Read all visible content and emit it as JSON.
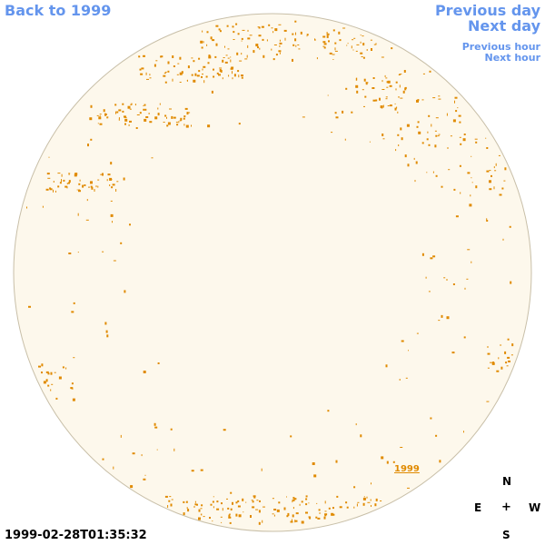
{
  "nav": {
    "back": "Back to 1999",
    "previous_day": "Previous day",
    "next_day": "Next day",
    "previous_hour": "Previous hour",
    "next_hour": "Next hour"
  },
  "compass": {
    "north": "N",
    "south": "S",
    "east": "E",
    "west": "W",
    "center": "+"
  },
  "timestamp": "1999-02-28T01:35:32",
  "disk_label": "1999",
  "colors": {
    "link": "#6495ed",
    "disk_fill": "#fdf8ec",
    "disk_border": "#c8bfa8",
    "feature": "#e08a00"
  }
}
